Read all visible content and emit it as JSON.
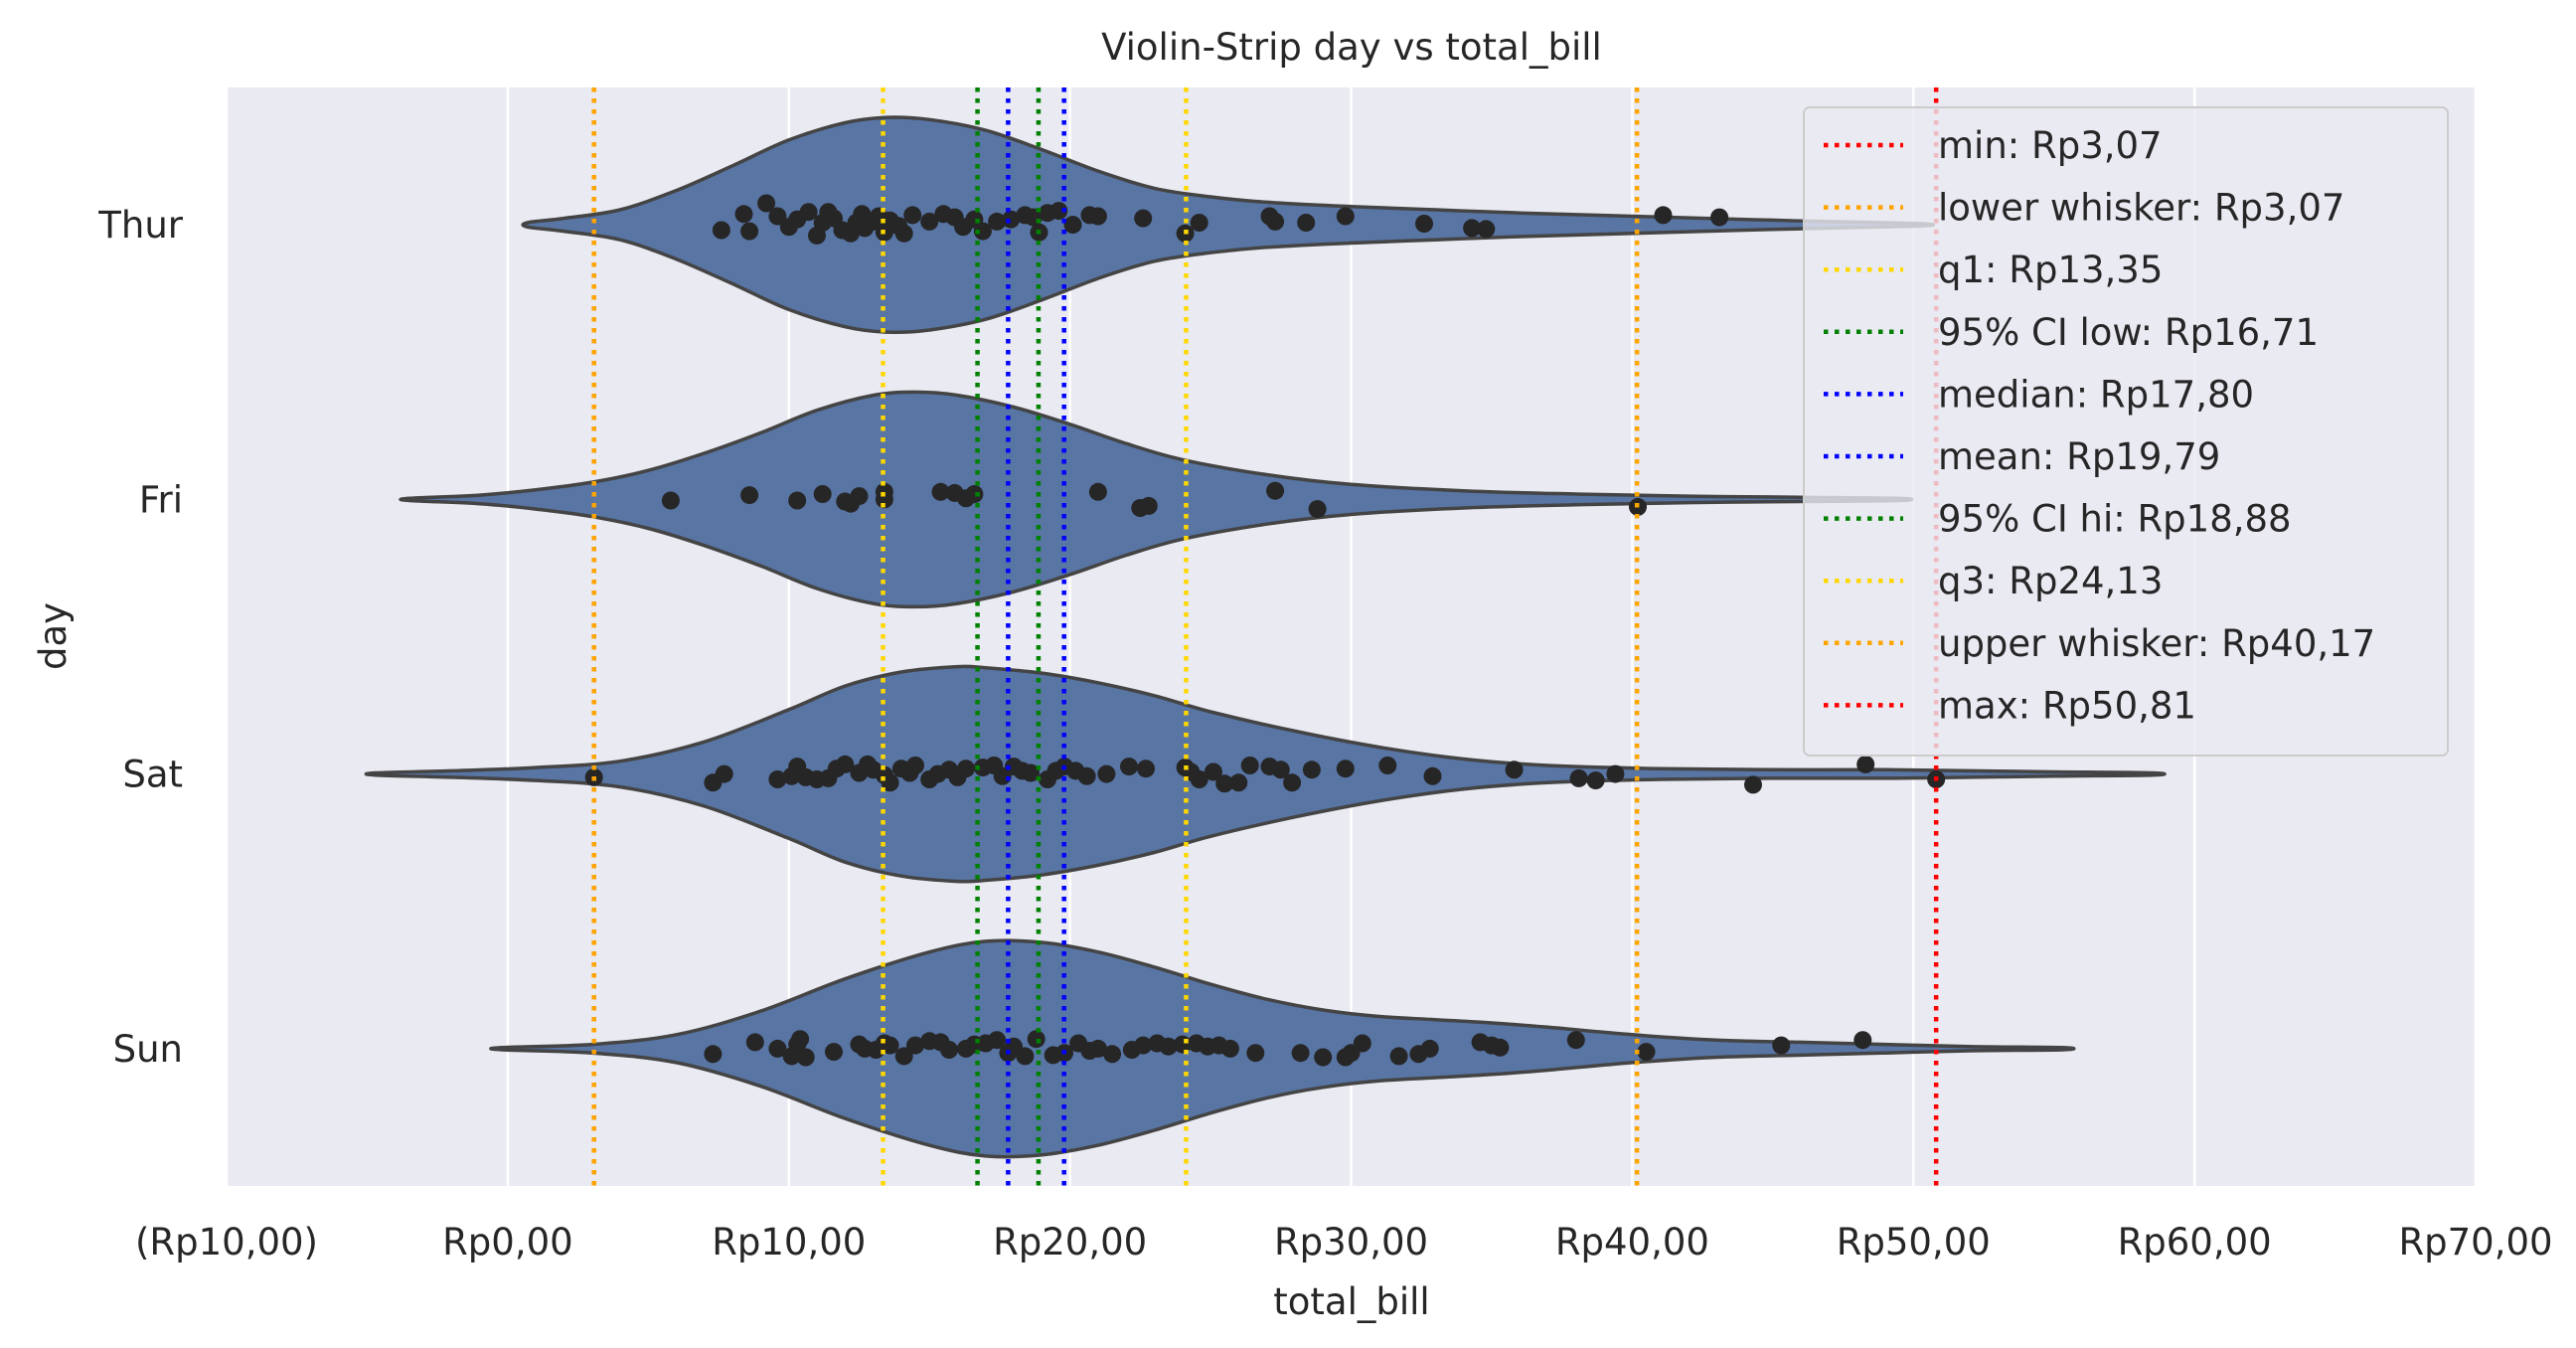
{
  "chart_data": {
    "type": "violin",
    "title": "Violin-Strip day vs total_bill",
    "xlabel": "total_bill",
    "ylabel": "day",
    "xlim": [
      -10,
      70
    ],
    "x_ticks": [
      -10,
      0,
      10,
      20,
      30,
      40,
      50,
      60,
      70
    ],
    "x_tick_labels": [
      "(Rp10,00)",
      "Rp0,00",
      "Rp10,00",
      "Rp20,00",
      "Rp30,00",
      "Rp40,00",
      "Rp50,00",
      "Rp60,00",
      "Rp70,00"
    ],
    "categories": [
      "Thur",
      "Fri",
      "Sat",
      "Sun"
    ],
    "grid": true,
    "legend_position": "top-right",
    "colors": {
      "background": "#eaeaf2",
      "violin_fill": "#5875a4",
      "violin_edge": "#444444",
      "points": "#262626"
    },
    "reference_lines": [
      {
        "label": "min: Rp3,07",
        "value": 3.07,
        "color": "#ff0000"
      },
      {
        "label": "lower whisker: Rp3,07",
        "value": 3.07,
        "color": "#ffa500"
      },
      {
        "label": "q1: Rp13,35",
        "value": 13.35,
        "color": "#ffd700"
      },
      {
        "label": "95% CI low: Rp16,71",
        "value": 16.71,
        "color": "#008000"
      },
      {
        "label": "median: Rp17,80",
        "value": 17.8,
        "color": "#0000ff"
      },
      {
        "label": "mean: Rp19,79",
        "value": 19.79,
        "color": "#0000ff"
      },
      {
        "label": "95% CI hi: Rp18,88",
        "value": 18.88,
        "color": "#008000"
      },
      {
        "label": "q3: Rp24,13",
        "value": 24.13,
        "color": "#ffd700"
      },
      {
        "label": "upper whisker: Rp40,17",
        "value": 40.17,
        "color": "#ffa500"
      },
      {
        "label": "max: Rp50,81",
        "value": 50.81,
        "color": "#ff0000"
      }
    ],
    "series": [
      {
        "day": "Thur",
        "violin": {
          "x": [
            0.7,
            2,
            4,
            6,
            8,
            10,
            12,
            13.5,
            15,
            17,
            19,
            21,
            23,
            25,
            27,
            30,
            33,
            36,
            40,
            44,
            47,
            50.3
          ],
          "halfwidth": [
            0.02,
            0.06,
            0.14,
            0.32,
            0.55,
            0.79,
            0.95,
            1.0,
            0.98,
            0.88,
            0.7,
            0.5,
            0.34,
            0.26,
            0.21,
            0.17,
            0.14,
            0.11,
            0.08,
            0.05,
            0.03,
            0.01
          ]
        },
        "points": [
          {
            "x": 7.6,
            "o": -0.05
          },
          {
            "x": 8.4,
            "o": 0.1
          },
          {
            "x": 8.6,
            "o": -0.06
          },
          {
            "x": 9.2,
            "o": 0.2
          },
          {
            "x": 9.6,
            "o": 0.08
          },
          {
            "x": 10.0,
            "o": -0.02
          },
          {
            "x": 10.3,
            "o": 0.05
          },
          {
            "x": 10.7,
            "o": 0.12
          },
          {
            "x": 11.0,
            "o": -0.1
          },
          {
            "x": 11.2,
            "o": 0.02
          },
          {
            "x": 11.4,
            "o": 0.12
          },
          {
            "x": 11.6,
            "o": 0.06
          },
          {
            "x": 11.9,
            "o": -0.05
          },
          {
            "x": 12.2,
            "o": -0.08
          },
          {
            "x": 12.4,
            "o": 0.02
          },
          {
            "x": 12.6,
            "o": 0.1
          },
          {
            "x": 12.7,
            "o": -0.03
          },
          {
            "x": 13.0,
            "o": 0.03
          },
          {
            "x": 13.2,
            "o": 0.08
          },
          {
            "x": 13.4,
            "o": -0.07
          },
          {
            "x": 13.6,
            "o": 0.04
          },
          {
            "x": 13.9,
            "o": -0.01
          },
          {
            "x": 14.1,
            "o": -0.08
          },
          {
            "x": 14.4,
            "o": 0.09
          },
          {
            "x": 15.0,
            "o": 0.03
          },
          {
            "x": 15.5,
            "o": 0.1
          },
          {
            "x": 15.9,
            "o": 0.07
          },
          {
            "x": 16.2,
            "o": -0.02
          },
          {
            "x": 16.6,
            "o": 0.05
          },
          {
            "x": 16.9,
            "o": -0.06
          },
          {
            "x": 17.4,
            "o": 0.03
          },
          {
            "x": 17.9,
            "o": 0.05
          },
          {
            "x": 18.4,
            "o": 0.09
          },
          {
            "x": 18.7,
            "o": 0.07
          },
          {
            "x": 18.9,
            "o": -0.07
          },
          {
            "x": 19.2,
            "o": 0.11
          },
          {
            "x": 19.6,
            "o": 0.13
          },
          {
            "x": 20.1,
            "o": 0.0
          },
          {
            "x": 20.7,
            "o": 0.09
          },
          {
            "x": 21.0,
            "o": 0.08
          },
          {
            "x": 22.6,
            "o": 0.06
          },
          {
            "x": 24.1,
            "o": -0.08
          },
          {
            "x": 24.6,
            "o": 0.02
          },
          {
            "x": 27.1,
            "o": 0.08
          },
          {
            "x": 27.3,
            "o": 0.03
          },
          {
            "x": 28.4,
            "o": 0.02
          },
          {
            "x": 29.8,
            "o": 0.08
          },
          {
            "x": 32.6,
            "o": 0.01
          },
          {
            "x": 34.3,
            "o": -0.03
          },
          {
            "x": 34.8,
            "o": -0.04
          },
          {
            "x": 41.1,
            "o": 0.09
          },
          {
            "x": 43.1,
            "o": 0.07
          }
        ]
      },
      {
        "day": "Fri",
        "violin": {
          "x": [
            -3.5,
            -1,
            1,
            3,
            5,
            7,
            9,
            11,
            13,
            14.5,
            16,
            18,
            20,
            22,
            24,
            27,
            30,
            34,
            38,
            42,
            46,
            49.5
          ],
          "halfwidth": [
            0.01,
            0.04,
            0.09,
            0.16,
            0.27,
            0.43,
            0.62,
            0.83,
            0.97,
            1.0,
            0.97,
            0.86,
            0.7,
            0.52,
            0.37,
            0.23,
            0.14,
            0.08,
            0.05,
            0.03,
            0.02,
            0.01
          ]
        },
        "points": [
          {
            "x": 5.8,
            "o": -0.01
          },
          {
            "x": 8.6,
            "o": 0.04
          },
          {
            "x": 10.3,
            "o": -0.01
          },
          {
            "x": 11.2,
            "o": 0.05
          },
          {
            "x": 12.0,
            "o": -0.02
          },
          {
            "x": 12.2,
            "o": -0.04
          },
          {
            "x": 12.5,
            "o": 0.03
          },
          {
            "x": 13.4,
            "o": 0.0
          },
          {
            "x": 13.4,
            "o": 0.07
          },
          {
            "x": 15.4,
            "o": 0.07
          },
          {
            "x": 15.9,
            "o": 0.06
          },
          {
            "x": 16.3,
            "o": 0.01
          },
          {
            "x": 16.6,
            "o": 0.05
          },
          {
            "x": 21.0,
            "o": 0.07
          },
          {
            "x": 22.5,
            "o": -0.08
          },
          {
            "x": 22.8,
            "o": -0.06
          },
          {
            "x": 27.3,
            "o": 0.08
          },
          {
            "x": 28.8,
            "o": -0.09
          },
          {
            "x": 40.2,
            "o": -0.07
          }
        ]
      },
      {
        "day": "Sat",
        "violin": {
          "x": [
            -4.7,
            -2,
            1,
            4,
            7,
            10,
            12,
            14,
            16,
            17,
            19,
            21,
            23,
            25,
            28,
            31,
            34,
            37,
            41,
            45,
            49,
            52,
            55,
            58.5
          ],
          "halfwidth": [
            0.01,
            0.03,
            0.06,
            0.12,
            0.3,
            0.6,
            0.82,
            0.95,
            1.0,
            0.99,
            0.94,
            0.85,
            0.73,
            0.58,
            0.4,
            0.25,
            0.14,
            0.08,
            0.05,
            0.04,
            0.04,
            0.03,
            0.02,
            0.01
          ]
        },
        "points": [
          {
            "x": 3.07,
            "o": -0.03
          },
          {
            "x": 7.3,
            "o": -0.08
          },
          {
            "x": 7.7,
            "o": 0.0
          },
          {
            "x": 9.6,
            "o": -0.05
          },
          {
            "x": 10.1,
            "o": -0.02
          },
          {
            "x": 10.3,
            "o": 0.07
          },
          {
            "x": 10.6,
            "o": -0.03
          },
          {
            "x": 11.0,
            "o": -0.05
          },
          {
            "x": 11.4,
            "o": -0.04
          },
          {
            "x": 11.7,
            "o": 0.05
          },
          {
            "x": 12.0,
            "o": 0.09
          },
          {
            "x": 12.5,
            "o": 0.01
          },
          {
            "x": 12.8,
            "o": 0.09
          },
          {
            "x": 13.0,
            "o": 0.04
          },
          {
            "x": 13.4,
            "o": -0.01
          },
          {
            "x": 13.6,
            "o": -0.08
          },
          {
            "x": 14.0,
            "o": 0.05
          },
          {
            "x": 14.3,
            "o": 0.01
          },
          {
            "x": 14.5,
            "o": 0.08
          },
          {
            "x": 15.0,
            "o": -0.05
          },
          {
            "x": 15.3,
            "o": 0.0
          },
          {
            "x": 15.7,
            "o": 0.04
          },
          {
            "x": 16.0,
            "o": -0.03
          },
          {
            "x": 16.3,
            "o": 0.05
          },
          {
            "x": 16.9,
            "o": 0.06
          },
          {
            "x": 17.3,
            "o": 0.08
          },
          {
            "x": 17.6,
            "o": -0.02
          },
          {
            "x": 18.0,
            "o": 0.07
          },
          {
            "x": 18.3,
            "o": 0.03
          },
          {
            "x": 18.6,
            "o": 0.01
          },
          {
            "x": 19.2,
            "o": -0.05
          },
          {
            "x": 19.5,
            "o": 0.03
          },
          {
            "x": 19.8,
            "o": 0.07
          },
          {
            "x": 20.2,
            "o": 0.03
          },
          {
            "x": 20.6,
            "o": -0.02
          },
          {
            "x": 21.3,
            "o": 0.0
          },
          {
            "x": 22.1,
            "o": 0.07
          },
          {
            "x": 22.7,
            "o": 0.05
          },
          {
            "x": 24.1,
            "o": 0.06
          },
          {
            "x": 24.3,
            "o": 0.02
          },
          {
            "x": 24.6,
            "o": -0.05
          },
          {
            "x": 25.1,
            "o": 0.02
          },
          {
            "x": 25.5,
            "o": -0.09
          },
          {
            "x": 26.0,
            "o": -0.08
          },
          {
            "x": 26.4,
            "o": 0.08
          },
          {
            "x": 27.1,
            "o": 0.07
          },
          {
            "x": 27.5,
            "o": 0.04
          },
          {
            "x": 27.9,
            "o": -0.08
          },
          {
            "x": 28.6,
            "o": 0.04
          },
          {
            "x": 29.8,
            "o": 0.05
          },
          {
            "x": 31.3,
            "o": 0.08
          },
          {
            "x": 32.9,
            "o": -0.02
          },
          {
            "x": 35.8,
            "o": 0.04
          },
          {
            "x": 38.1,
            "o": -0.04
          },
          {
            "x": 38.7,
            "o": -0.06
          },
          {
            "x": 39.4,
            "o": 0.0
          },
          {
            "x": 44.3,
            "o": -0.1
          },
          {
            "x": 48.3,
            "o": 0.09
          },
          {
            "x": 50.81,
            "o": -0.05
          }
        ]
      },
      {
        "day": "Sun",
        "violin": {
          "x": [
            -0.2,
            3,
            6,
            9,
            12,
            15,
            17,
            19,
            21,
            23,
            25,
            27,
            29,
            31,
            33,
            35,
            37,
            40,
            43,
            46,
            49,
            52,
            55.3
          ],
          "halfwidth": [
            0.01,
            0.04,
            0.13,
            0.35,
            0.65,
            0.9,
            1.0,
            0.99,
            0.9,
            0.76,
            0.6,
            0.46,
            0.36,
            0.3,
            0.27,
            0.24,
            0.2,
            0.13,
            0.08,
            0.06,
            0.04,
            0.02,
            0.01
          ]
        },
        "points": [
          {
            "x": 7.3,
            "o": -0.05
          },
          {
            "x": 8.8,
            "o": 0.06
          },
          {
            "x": 9.6,
            "o": 0.0
          },
          {
            "x": 10.1,
            "o": -0.07
          },
          {
            "x": 10.3,
            "o": 0.04
          },
          {
            "x": 10.4,
            "o": 0.09
          },
          {
            "x": 10.6,
            "o": -0.08
          },
          {
            "x": 11.6,
            "o": -0.03
          },
          {
            "x": 12.5,
            "o": 0.04
          },
          {
            "x": 12.7,
            "o": 0.0
          },
          {
            "x": 13.1,
            "o": -0.01
          },
          {
            "x": 13.4,
            "o": 0.05
          },
          {
            "x": 13.6,
            "o": 0.03
          },
          {
            "x": 14.1,
            "o": -0.07
          },
          {
            "x": 14.5,
            "o": 0.03
          },
          {
            "x": 15.0,
            "o": 0.07
          },
          {
            "x": 15.4,
            "o": 0.06
          },
          {
            "x": 15.7,
            "o": -0.01
          },
          {
            "x": 16.3,
            "o": 0.0
          },
          {
            "x": 16.6,
            "o": 0.04
          },
          {
            "x": 17.0,
            "o": 0.05
          },
          {
            "x": 17.4,
            "o": 0.08
          },
          {
            "x": 17.8,
            "o": -0.04
          },
          {
            "x": 18.0,
            "o": 0.02
          },
          {
            "x": 18.4,
            "o": -0.07
          },
          {
            "x": 18.8,
            "o": 0.09
          },
          {
            "x": 19.4,
            "o": -0.06
          },
          {
            "x": 19.8,
            "o": -0.04
          },
          {
            "x": 20.3,
            "o": 0.05
          },
          {
            "x": 20.7,
            "o": -0.02
          },
          {
            "x": 21.0,
            "o": 0.0
          },
          {
            "x": 21.5,
            "o": -0.05
          },
          {
            "x": 22.2,
            "o": -0.01
          },
          {
            "x": 22.6,
            "o": 0.03
          },
          {
            "x": 23.1,
            "o": 0.05
          },
          {
            "x": 23.5,
            "o": 0.02
          },
          {
            "x": 24.0,
            "o": 0.04
          },
          {
            "x": 24.5,
            "o": 0.05
          },
          {
            "x": 24.9,
            "o": 0.02
          },
          {
            "x": 25.3,
            "o": 0.03
          },
          {
            "x": 25.7,
            "o": 0.0
          },
          {
            "x": 26.6,
            "o": -0.04
          },
          {
            "x": 28.2,
            "o": -0.04
          },
          {
            "x": 29.0,
            "o": -0.08
          },
          {
            "x": 29.8,
            "o": -0.08
          },
          {
            "x": 30.0,
            "o": -0.04
          },
          {
            "x": 30.4,
            "o": 0.05
          },
          {
            "x": 31.7,
            "o": -0.07
          },
          {
            "x": 32.4,
            "o": -0.05
          },
          {
            "x": 32.8,
            "o": 0.0
          },
          {
            "x": 34.6,
            "o": 0.06
          },
          {
            "x": 35.0,
            "o": 0.03
          },
          {
            "x": 35.3,
            "o": 0.01
          },
          {
            "x": 38.0,
            "o": 0.08
          },
          {
            "x": 40.5,
            "o": -0.03
          },
          {
            "x": 45.3,
            "o": 0.03
          },
          {
            "x": 48.2,
            "o": 0.08
          }
        ]
      }
    ]
  }
}
